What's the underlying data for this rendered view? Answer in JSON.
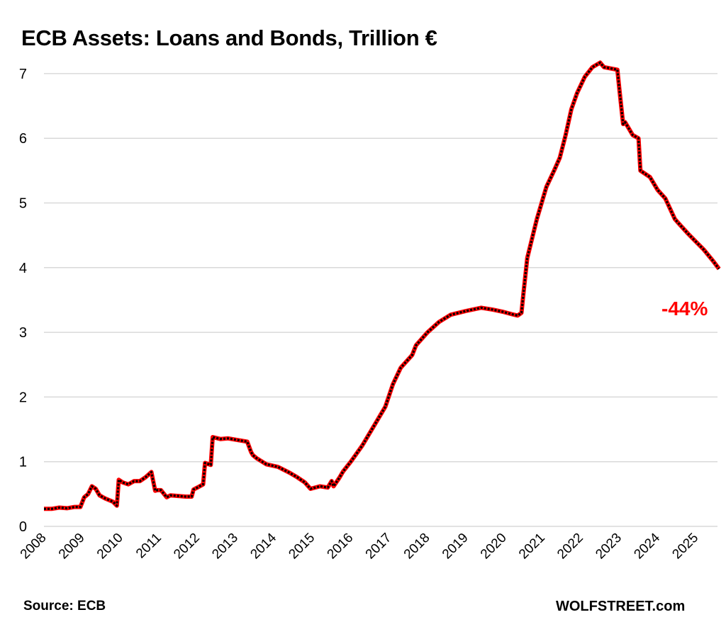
{
  "header": {
    "title": "ECB Assets: Loans and Bonds, Trillion €"
  },
  "footer": {
    "source": "Source: ECB",
    "brand": "WOLFSTREET.com"
  },
  "annotation": {
    "text": "-44%",
    "color": "#ff0000"
  },
  "colors": {
    "line_outer": "#ff0000",
    "line_inner": "#000000",
    "grid": "#d9d9d9"
  },
  "chart_data": {
    "type": "line",
    "title": "ECB Assets: Loans and Bonds, Trillion €",
    "xlabel": "",
    "ylabel": "Trillion €",
    "ylim": [
      0,
      7
    ],
    "yticks": [
      0,
      1,
      2,
      3,
      4,
      5,
      6,
      7
    ],
    "xticks": [
      "2008",
      "2009",
      "2010",
      "2011",
      "2012",
      "2013",
      "2014",
      "2015",
      "2016",
      "2017",
      "2018",
      "2019",
      "2020",
      "2021",
      "2022",
      "2023",
      "2024",
      "2025"
    ],
    "grid": true,
    "legend": "none",
    "annotations": [
      {
        "text": "-44%",
        "x": 2025.6,
        "y": 3.6,
        "color": "#ff0000"
      }
    ],
    "series": [
      {
        "name": "ECB Loans and Bonds",
        "x": [
          2008.0,
          2008.2,
          2008.4,
          2008.6,
          2008.8,
          2008.95,
          2009.05,
          2009.15,
          2009.25,
          2009.35,
          2009.45,
          2009.6,
          2009.8,
          2009.9,
          2009.95,
          2010.05,
          2010.2,
          2010.35,
          2010.5,
          2010.65,
          2010.8,
          2010.9,
          2010.95,
          2011.05,
          2011.2,
          2011.3,
          2011.5,
          2011.7,
          2011.85,
          2011.9,
          2012.0,
          2012.15,
          2012.2,
          2012.35,
          2012.4,
          2012.6,
          2012.8,
          2013.0,
          2013.3,
          2013.4,
          2013.45,
          2013.55,
          2013.8,
          2014.1,
          2014.4,
          2014.6,
          2014.8,
          2014.95,
          2015.2,
          2015.4,
          2015.5,
          2015.55,
          2015.7,
          2015.8,
          2016.0,
          2016.3,
          2016.6,
          2016.9,
          2017.1,
          2017.3,
          2017.6,
          2017.7,
          2018.0,
          2018.3,
          2018.6,
          2019.0,
          2019.4,
          2019.7,
          2019.95,
          2020.2,
          2020.35,
          2020.45,
          2020.5,
          2020.6,
          2020.85,
          2020.95,
          2021.0,
          2021.1,
          2021.3,
          2021.45,
          2021.6,
          2021.75,
          2021.9,
          2022.1,
          2022.3,
          2022.5,
          2022.6,
          2022.95,
          2023.0,
          2023.1,
          2023.15,
          2023.35,
          2023.5,
          2023.55,
          2023.8,
          2024.0,
          2024.2,
          2024.45,
          2024.6,
          2024.8,
          2025.0,
          2025.2,
          2025.45,
          2025.6
        ],
        "values": [
          0.27,
          0.27,
          0.29,
          0.28,
          0.3,
          0.3,
          0.45,
          0.5,
          0.62,
          0.58,
          0.48,
          0.43,
          0.38,
          0.32,
          0.72,
          0.68,
          0.65,
          0.7,
          0.7,
          0.76,
          0.84,
          0.55,
          0.56,
          0.56,
          0.45,
          0.48,
          0.47,
          0.46,
          0.46,
          0.57,
          0.6,
          0.65,
          0.98,
          0.95,
          1.38,
          1.35,
          1.36,
          1.34,
          1.31,
          1.15,
          1.1,
          1.05,
          0.96,
          0.92,
          0.83,
          0.76,
          0.68,
          0.58,
          0.62,
          0.6,
          0.7,
          0.62,
          0.75,
          0.85,
          1.0,
          1.25,
          1.55,
          1.85,
          2.2,
          2.45,
          2.65,
          2.8,
          3.0,
          3.16,
          3.27,
          3.33,
          3.38,
          3.35,
          3.32,
          3.28,
          3.26,
          3.3,
          3.6,
          4.15,
          4.75,
          4.95,
          5.05,
          5.25,
          5.5,
          5.7,
          6.05,
          6.45,
          6.7,
          6.95,
          7.1,
          7.17,
          7.1,
          7.06,
          6.77,
          6.22,
          6.25,
          6.05,
          6.0,
          5.5,
          5.4,
          5.2,
          5.07,
          4.75,
          4.65,
          4.52,
          4.4,
          4.28,
          4.1,
          3.98
        ]
      }
    ]
  }
}
